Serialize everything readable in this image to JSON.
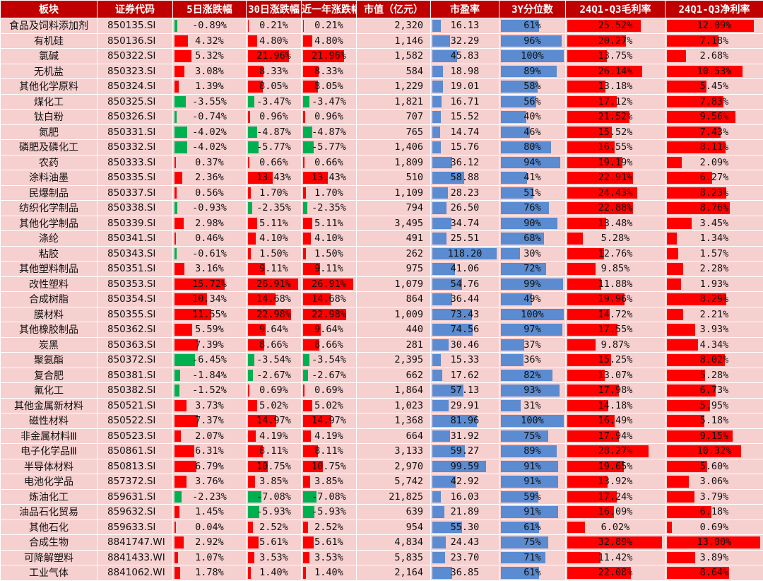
{
  "columns": [
    "板块",
    "证券代码",
    "5日涨跌幅",
    "30日涨跌幅",
    "近一年涨跌幅",
    "市值（亿元）",
    "市盈率",
    "3Y分位数",
    "24Q1-Q3毛利率",
    "24Q1-Q3净利率"
  ],
  "rows": [
    {
      "name": "食品及饲料添加剂",
      "code": "850135.SI",
      "d5": "-0.89%",
      "d30": "0.21%",
      "y1": "0.21%",
      "mcap": "2,320",
      "pe": "16.13",
      "pct": "61%",
      "gm": "25.52%",
      "nm": "12.09%"
    },
    {
      "name": "有机硅",
      "code": "850136.SI",
      "d5": "4.32%",
      "d30": "4.80%",
      "y1": "4.80%",
      "mcap": "1,146",
      "pe": "32.29",
      "pct": "96%",
      "gm": "20.27%",
      "nm": "7.18%"
    },
    {
      "name": "氯碱",
      "code": "850322.SI",
      "d5": "5.32%",
      "d30": "21.96%",
      "y1": "21.96%",
      "mcap": "1,582",
      "pe": "45.83",
      "pct": "100%",
      "gm": "13.75%",
      "nm": "2.68%"
    },
    {
      "name": "无机盐",
      "code": "850323.SI",
      "d5": "3.08%",
      "d30": "8.33%",
      "y1": "8.33%",
      "mcap": "584",
      "pe": "18.98",
      "pct": "89%",
      "gm": "26.14%",
      "nm": "10.53%"
    },
    {
      "name": "其他化学原料",
      "code": "850324.SI",
      "d5": "1.39%",
      "d30": "8.05%",
      "y1": "8.05%",
      "mcap": "1,229",
      "pe": "19.01",
      "pct": "58%",
      "gm": "13.18%",
      "nm": "5.45%"
    },
    {
      "name": "煤化工",
      "code": "850325.SI",
      "d5": "-3.55%",
      "d30": "-3.47%",
      "y1": "-3.47%",
      "mcap": "1,821",
      "pe": "16.71",
      "pct": "56%",
      "gm": "17.12%",
      "nm": "7.83%"
    },
    {
      "name": "钛白粉",
      "code": "850326.SI",
      "d5": "-0.74%",
      "d30": "0.96%",
      "y1": "0.96%",
      "mcap": "707",
      "pe": "15.52",
      "pct": "40%",
      "gm": "21.52%",
      "nm": "9.56%"
    },
    {
      "name": "氮肥",
      "code": "850331.SI",
      "d5": "-4.02%",
      "d30": "-4.87%",
      "y1": "-4.87%",
      "mcap": "765",
      "pe": "14.74",
      "pct": "46%",
      "gm": "15.52%",
      "nm": "7.43%"
    },
    {
      "name": "磷肥及磷化工",
      "code": "850332.SI",
      "d5": "-4.02%",
      "d30": "-5.77%",
      "y1": "-5.77%",
      "mcap": "1,406",
      "pe": "15.76",
      "pct": "80%",
      "gm": "16.55%",
      "nm": "8.11%"
    },
    {
      "name": "农药",
      "code": "850333.SI",
      "d5": "0.37%",
      "d30": "0.66%",
      "y1": "0.66%",
      "mcap": "1,809",
      "pe": "36.12",
      "pct": "94%",
      "gm": "19.19%",
      "nm": "2.09%"
    },
    {
      "name": "涂料油墨",
      "code": "850335.SI",
      "d5": "2.36%",
      "d30": "13.43%",
      "y1": "13.43%",
      "mcap": "510",
      "pe": "58.88",
      "pct": "41%",
      "gm": "22.91%",
      "nm": "6.27%"
    },
    {
      "name": "民爆制品",
      "code": "850337.SI",
      "d5": "0.56%",
      "d30": "1.70%",
      "y1": "1.70%",
      "mcap": "1,109",
      "pe": "28.23",
      "pct": "51%",
      "gm": "24.43%",
      "nm": "8.23%"
    },
    {
      "name": "纺织化学制品",
      "code": "850338.SI",
      "d5": "-0.93%",
      "d30": "-2.35%",
      "y1": "-2.35%",
      "mcap": "794",
      "pe": "26.50",
      "pct": "76%",
      "gm": "22.88%",
      "nm": "8.76%"
    },
    {
      "name": "其他化学制品",
      "code": "850339.SI",
      "d5": "2.98%",
      "d30": "5.11%",
      "y1": "5.11%",
      "mcap": "3,495",
      "pe": "34.74",
      "pct": "90%",
      "gm": "13.48%",
      "nm": "3.45%"
    },
    {
      "name": "涤纶",
      "code": "850341.SI",
      "d5": "0.46%",
      "d30": "4.10%",
      "y1": "4.10%",
      "mcap": "491",
      "pe": "25.51",
      "pct": "68%",
      "gm": "5.28%",
      "nm": "1.34%"
    },
    {
      "name": "粘胶",
      "code": "850343.SI",
      "d5": "-0.61%",
      "d30": "1.50%",
      "y1": "1.50%",
      "mcap": "262",
      "pe": "118.20",
      "pct": "30%",
      "gm": "12.76%",
      "nm": "1.57%"
    },
    {
      "name": "其他塑料制品",
      "code": "850351.SI",
      "d5": "3.16%",
      "d30": "9.11%",
      "y1": "9.11%",
      "mcap": "975",
      "pe": "41.06",
      "pct": "72%",
      "gm": "9.85%",
      "nm": "2.28%"
    },
    {
      "name": "改性塑料",
      "code": "850353.SI",
      "d5": "15.72%",
      "d30": "26.91%",
      "y1": "26.91%",
      "mcap": "1,079",
      "pe": "54.76",
      "pct": "99%",
      "gm": "11.88%",
      "nm": "1.93%"
    },
    {
      "name": "合成树脂",
      "code": "850354.SI",
      "d5": "10.34%",
      "d30": "14.68%",
      "y1": "14.68%",
      "mcap": "864",
      "pe": "36.44",
      "pct": "49%",
      "gm": "19.96%",
      "nm": "8.29%"
    },
    {
      "name": "膜材料",
      "code": "850355.SI",
      "d5": "11.55%",
      "d30": "22.98%",
      "y1": "22.98%",
      "mcap": "1,009",
      "pe": "73.43",
      "pct": "100%",
      "gm": "14.72%",
      "nm": "2.21%"
    },
    {
      "name": "其他橡胶制品",
      "code": "850362.SI",
      "d5": "5.59%",
      "d30": "9.64%",
      "y1": "9.64%",
      "mcap": "440",
      "pe": "74.56",
      "pct": "97%",
      "gm": "17.55%",
      "nm": "3.93%"
    },
    {
      "name": "炭黑",
      "code": "850363.SI",
      "d5": "7.39%",
      "d30": "8.66%",
      "y1": "8.66%",
      "mcap": "281",
      "pe": "30.46",
      "pct": "37%",
      "gm": "9.87%",
      "nm": "4.34%"
    },
    {
      "name": "聚氨酯",
      "code": "850372.SI",
      "d5": "-6.45%",
      "d30": "-3.54%",
      "y1": "-3.54%",
      "mcap": "2,395",
      "pe": "15.33",
      "pct": "36%",
      "gm": "15.25%",
      "nm": "8.02%"
    },
    {
      "name": "复合肥",
      "code": "850381.SI",
      "d5": "-1.84%",
      "d30": "-2.67%",
      "y1": "-2.67%",
      "mcap": "662",
      "pe": "17.62",
      "pct": "82%",
      "gm": "13.07%",
      "nm": "5.28%"
    },
    {
      "name": "氟化工",
      "code": "850382.SI",
      "d5": "-1.52%",
      "d30": "0.69%",
      "y1": "0.69%",
      "mcap": "1,864",
      "pe": "57.13",
      "pct": "93%",
      "gm": "17.98%",
      "nm": "6.73%"
    },
    {
      "name": "其他金属新材料",
      "code": "850521.SI",
      "d5": "3.73%",
      "d30": "5.02%",
      "y1": "5.02%",
      "mcap": "1,023",
      "pe": "29.91",
      "pct": "31%",
      "gm": "14.18%",
      "nm": "5.95%"
    },
    {
      "name": "磁性材料",
      "code": "850522.SI",
      "d5": "7.37%",
      "d30": "14.97%",
      "y1": "14.97%",
      "mcap": "1,368",
      "pe": "81.96",
      "pct": "100%",
      "gm": "16.49%",
      "nm": "5.18%"
    },
    {
      "name": "非金属材料Ⅲ",
      "code": "850523.SI",
      "d5": "2.07%",
      "d30": "4.19%",
      "y1": "4.19%",
      "mcap": "664",
      "pe": "31.92",
      "pct": "75%",
      "gm": "17.94%",
      "nm": "9.15%"
    },
    {
      "name": "电子化学品Ⅲ",
      "code": "850861.SI",
      "d5": "6.31%",
      "d30": "8.11%",
      "y1": "8.11%",
      "mcap": "3,133",
      "pe": "59.27",
      "pct": "89%",
      "gm": "28.27%",
      "nm": "10.32%"
    },
    {
      "name": "半导体材料",
      "code": "850813.SI",
      "d5": "6.79%",
      "d30": "10.75%",
      "y1": "10.75%",
      "mcap": "2,970",
      "pe": "99.59",
      "pct": "91%",
      "gm": "19.65%",
      "nm": "5.60%"
    },
    {
      "name": "电池化学品",
      "code": "857372.SI",
      "d5": "3.76%",
      "d30": "3.85%",
      "y1": "3.85%",
      "mcap": "5,742",
      "pe": "42.92",
      "pct": "91%",
      "gm": "13.92%",
      "nm": "3.06%"
    },
    {
      "name": "炼油化工",
      "code": "859631.SI",
      "d5": "-2.23%",
      "d30": "-7.08%",
      "y1": "-7.08%",
      "mcap": "21,825",
      "pe": "16.03",
      "pct": "59%",
      "gm": "17.24%",
      "nm": "3.79%"
    },
    {
      "name": "油品石化贸易",
      "code": "859632.SI",
      "d5": "1.45%",
      "d30": "-5.93%",
      "y1": "-5.93%",
      "mcap": "639",
      "pe": "21.89",
      "pct": "91%",
      "gm": "16.09%",
      "nm": "6.18%"
    },
    {
      "name": "其他石化",
      "code": "859633.SI",
      "d5": "0.04%",
      "d30": "2.52%",
      "y1": "2.52%",
      "mcap": "954",
      "pe": "55.30",
      "pct": "61%",
      "gm": "6.02%",
      "nm": "0.69%"
    },
    {
      "name": "合成生物",
      "code": "8841747.WI",
      "d5": "2.92%",
      "d30": "5.61%",
      "y1": "5.61%",
      "mcap": "4,834",
      "pe": "24.43",
      "pct": "75%",
      "gm": "32.89%",
      "nm": "13.00%"
    },
    {
      "name": "可降解塑料",
      "code": "8841433.WI",
      "d5": "1.07%",
      "d30": "3.53%",
      "y1": "3.53%",
      "mcap": "5,835",
      "pe": "23.70",
      "pct": "71%",
      "gm": "11.42%",
      "nm": "3.89%"
    },
    {
      "name": "工业气体",
      "code": "8841062.WI",
      "d5": "1.78%",
      "d30": "1.40%",
      "y1": "1.40%",
      "mcap": "2,164",
      "pe": "36.85",
      "pct": "61%",
      "gm": "22.08%",
      "nm": "8.64%"
    }
  ],
  "colors": {
    "header_bg": "#c00000",
    "cell_bg": "#f6cfcf",
    "positive_bar": "#ff0000",
    "negative_bar": "#00b050",
    "valuation_bar": "#5b8bd0"
  }
}
